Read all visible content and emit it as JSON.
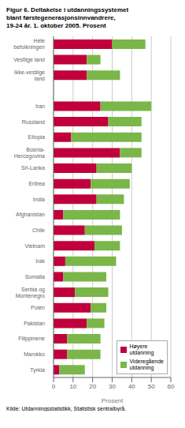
{
  "chart_data": {
    "type": "bar",
    "orientation": "horizontal",
    "stacked": true,
    "title": "Figur 6. Deltakelse i utdanningssystemet\nblant førstegenerasjonsinnvandrere,\n19-24 år. 1. oktober 2005. Prosent",
    "xlabel": "Prosent",
    "annotations": [
      "Kilde: Utdanningsstatistikk, Statistisk sentralbyrå."
    ],
    "categories": [
      "Hele\nbefolkningen",
      "Vestlige land",
      "Ikke-vestlige\nland",
      null,
      "Iran",
      "Russland",
      "Etiopia",
      "Bosnia-\nHercegovina",
      "Sri-Lanka",
      "Eritrea",
      "India",
      "Afghanistan",
      "Chile",
      "Vietnam",
      "Irak",
      "Somalia",
      "Serbia og\nMontenegro",
      "Polen",
      "Pakistan",
      "Filippinene",
      "Marokko",
      "Tyrkia"
    ],
    "series": [
      {
        "name": "Høyere\nutdanning",
        "color": "#c0003c",
        "values": [
          30,
          17,
          17,
          0,
          24,
          28,
          9,
          34,
          22,
          19,
          22,
          5,
          16,
          21,
          6,
          5,
          11,
          19,
          17,
          7,
          7,
          3
        ]
      },
      {
        "name": "Videregående\nutdanning",
        "color": "#7ab648",
        "values": [
          17,
          7,
          17,
          0,
          26,
          17,
          36,
          11,
          18,
          20,
          14,
          29,
          19,
          13,
          26,
          22,
          17,
          8,
          9,
          17,
          17,
          13
        ]
      }
    ],
    "xlim": [
      0,
      60
    ],
    "xticks": [
      0,
      10,
      20,
      30,
      40,
      50,
      60
    ],
    "grid": "x",
    "legend": "lower right"
  }
}
